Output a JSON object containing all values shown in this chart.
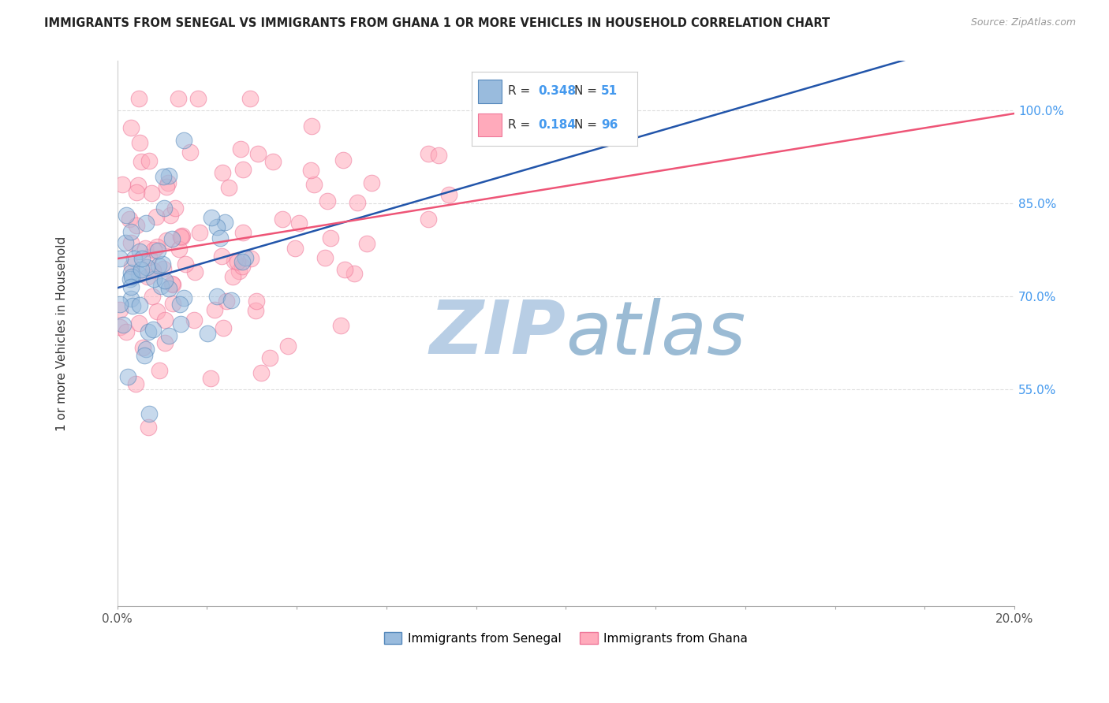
{
  "title": "IMMIGRANTS FROM SENEGAL VS IMMIGRANTS FROM GHANA 1 OR MORE VEHICLES IN HOUSEHOLD CORRELATION CHART",
  "source": "Source: ZipAtlas.com",
  "ylabel": "1 or more Vehicles in Household",
  "xlim": [
    0.0,
    20.0
  ],
  "ylim": [
    20.0,
    108.0
  ],
  "ytick_positions": [
    55.0,
    70.0,
    85.0,
    100.0
  ],
  "ytick_labels": [
    "55.0%",
    "70.0%",
    "85.0%",
    "100.0%"
  ],
  "xtick_positions": [
    0,
    2,
    4,
    6,
    8,
    10,
    12,
    14,
    16,
    18,
    20
  ],
  "xtick_labels_show": {
    "0": "0.0%",
    "20": "20.0%"
  },
  "senegal_R": 0.348,
  "senegal_N": 51,
  "ghana_R": 0.184,
  "ghana_N": 96,
  "senegal_color": "#99BBDD",
  "ghana_color": "#FFAABB",
  "senegal_edge": "#5588BB",
  "ghana_edge": "#EE7799",
  "trend_senegal": "#2255AA",
  "trend_ghana": "#EE5577",
  "watermark_zip_color": "#C5D8EE",
  "watermark_atlas_color": "#AABBCC",
  "background_color": "#FFFFFF",
  "grid_color": "#DDDDDD",
  "tick_color": "#4499EE",
  "legend_border_color": "#CCCCCC"
}
